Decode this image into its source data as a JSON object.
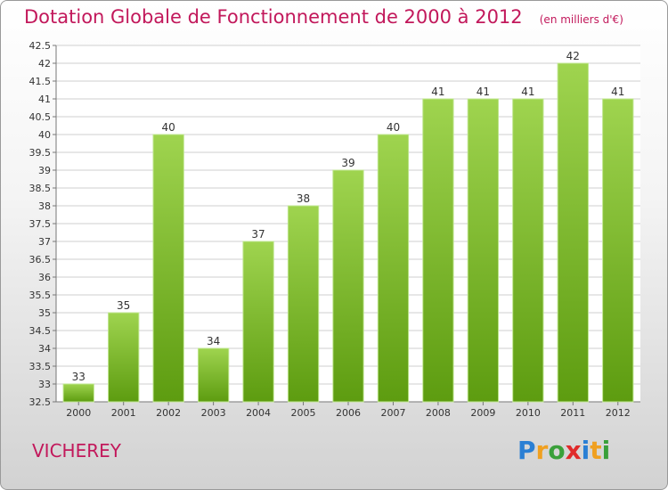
{
  "header": {
    "title": "Dotation Globale de Fonctionnement de 2000 à 2012",
    "unit": "(en milliers d'€)"
  },
  "footer": {
    "place": "VICHEREY",
    "logo": "Proxiti"
  },
  "colors": {
    "bar_top": "#9fd44f",
    "bar_bottom": "#5d9c10",
    "title": "#c2185b",
    "grid": "#cfcfcf"
  },
  "chart_data": {
    "type": "bar",
    "title": "Dotation Globale de Fonctionnement de 2000 à 2012",
    "subtitle": "(en milliers d'€)",
    "xlabel": "",
    "ylabel": "",
    "categories": [
      "2000",
      "2001",
      "2002",
      "2003",
      "2004",
      "2005",
      "2006",
      "2007",
      "2008",
      "2009",
      "2010",
      "2011",
      "2012"
    ],
    "values": [
      33,
      35,
      40,
      34,
      37,
      38,
      39,
      40,
      41,
      41,
      41,
      42,
      41
    ],
    "ylim": [
      32.5,
      42.5
    ],
    "yticks": [
      32.5,
      33,
      33.5,
      34,
      34.5,
      35,
      35.5,
      36,
      36.5,
      37,
      37.5,
      38,
      38.5,
      39,
      39.5,
      40,
      40.5,
      41,
      41.5,
      42,
      42.5
    ],
    "grid": true,
    "legend": "none",
    "data_labels": true
  }
}
